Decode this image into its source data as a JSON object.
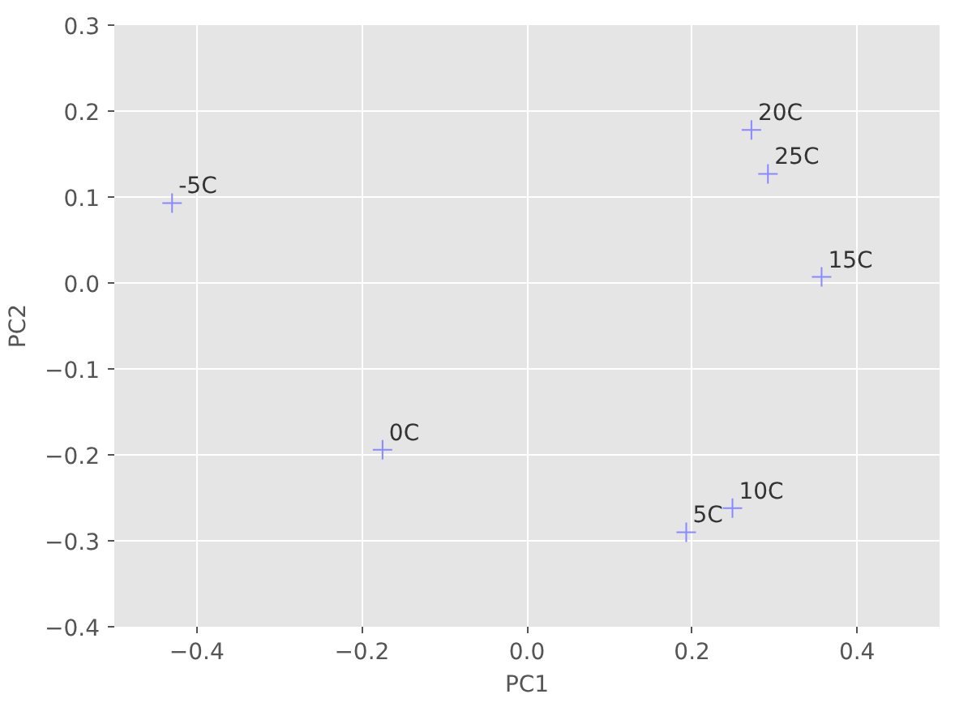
{
  "chart_data": {
    "type": "scatter",
    "xlabel": "PC1",
    "ylabel": "PC2",
    "x": [
      -0.43,
      -0.175,
      0.193,
      0.249,
      0.357,
      0.272,
      0.292
    ],
    "values": [
      0.093,
      -0.194,
      -0.29,
      -0.262,
      0.007,
      0.178,
      0.127
    ],
    "color": "#8888ff",
    "marker": "cross",
    "annotations": [
      {
        "text": "-5C",
        "x": -0.43,
        "y": 0.093
      },
      {
        "text": "0C",
        "x": -0.175,
        "y": -0.194
      },
      {
        "text": "5C",
        "x": 0.193,
        "y": -0.29
      },
      {
        "text": "10C",
        "x": 0.249,
        "y": -0.262
      },
      {
        "text": "15C",
        "x": 0.357,
        "y": 0.007
      },
      {
        "text": "20C",
        "x": 0.272,
        "y": 0.178
      },
      {
        "text": "25C",
        "x": 0.292,
        "y": 0.127
      }
    ],
    "xlim": [
      -0.5,
      0.5
    ],
    "ylim": [
      -0.4,
      0.3
    ],
    "xticks": [
      {
        "value": -0.4,
        "label": "−0.4"
      },
      {
        "value": -0.2,
        "label": "−0.2"
      },
      {
        "value": 0,
        "label": "0.0"
      },
      0.2,
      0.4
    ],
    "yticks": [
      {
        "value": -0.4,
        "label": "−0.4"
      },
      {
        "value": -0.3,
        "label": "−0.3"
      },
      {
        "value": -0.2,
        "label": "−0.2"
      },
      {
        "value": -0.1,
        "label": "−0.1"
      },
      {
        "value": 0,
        "label": "0.0"
      },
      0.1,
      0.2,
      0.3
    ],
    "grid": true
  }
}
